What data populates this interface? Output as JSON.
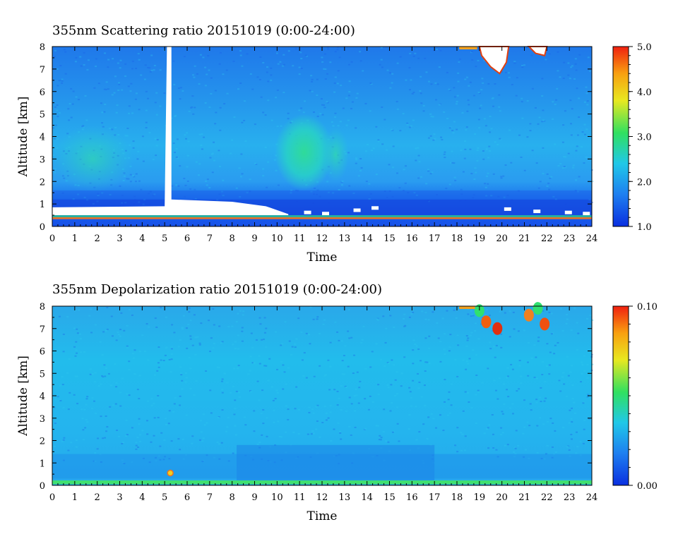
{
  "chart_data": [
    {
      "type": "heatmap",
      "title": "355nm Scattering ratio  20151019 (0:00-24:00)",
      "xlabel": "Time",
      "ylabel": "Altitude [km]",
      "xlim": [
        0,
        24
      ],
      "ylim": [
        0,
        8
      ],
      "x_ticks": [
        "0",
        "1",
        "2",
        "3",
        "4",
        "5",
        "6",
        "7",
        "8",
        "9",
        "10",
        "11",
        "12",
        "13",
        "14",
        "15",
        "16",
        "17",
        "18",
        "19",
        "20",
        "21",
        "22",
        "23",
        "24"
      ],
      "y_ticks": [
        "0",
        "1",
        "2",
        "3",
        "4",
        "5",
        "6",
        "7",
        "8"
      ],
      "colorbar": {
        "min": 1.0,
        "max": 5.0,
        "ticks": [
          "1.0",
          "2.0",
          "3.0",
          "4.0",
          "5.0"
        ],
        "ramp": [
          "#0a2fe0",
          "#1e80f0",
          "#20c8e8",
          "#30e060",
          "#e8e820",
          "#f8a010",
          "#f02010"
        ]
      },
      "features": [
        {
          "label": "boundary layer",
          "x": [
            0,
            24
          ],
          "y": [
            0.4,
            1.0
          ],
          "value": 1.3
        },
        {
          "label": "aerosol plume",
          "x": [
            9.6,
            13.0
          ],
          "y": [
            2.0,
            4.8
          ],
          "value": 2.4
        },
        {
          "label": "saturated column",
          "x": [
            5.0,
            5.3
          ],
          "y": [
            0.5,
            8.0
          ],
          "value": "white"
        },
        {
          "label": "cirrus cloud",
          "x": [
            18.8,
            22.2
          ],
          "y": [
            6.7,
            8.0
          ],
          "value": 5.0
        }
      ]
    },
    {
      "type": "heatmap",
      "title": "355nm Depolarization ratio  20151019 (0:00-24:00)",
      "xlabel": "Time",
      "ylabel": "Altitude [km]",
      "xlim": [
        0,
        24
      ],
      "ylim": [
        0,
        8
      ],
      "x_ticks": [
        "0",
        "1",
        "2",
        "3",
        "4",
        "5",
        "6",
        "7",
        "8",
        "9",
        "10",
        "11",
        "12",
        "13",
        "14",
        "15",
        "16",
        "17",
        "18",
        "19",
        "20",
        "21",
        "22",
        "23",
        "24"
      ],
      "y_ticks": [
        "0",
        "1",
        "2",
        "3",
        "4",
        "5",
        "6",
        "7",
        "8"
      ],
      "colorbar": {
        "min": 0.0,
        "max": 0.1,
        "ticks": [
          "0.00",
          "0.10"
        ],
        "ramp": [
          "#0a2fe0",
          "#1e80f0",
          "#20c8e8",
          "#30e060",
          "#e8e820",
          "#f8a010",
          "#f02010"
        ]
      },
      "features": [
        {
          "label": "background",
          "x": [
            0,
            24
          ],
          "y": [
            0,
            8
          ],
          "value": 0.02
        },
        {
          "label": "near-surface layer",
          "x": [
            0,
            24
          ],
          "y": [
            0,
            0.2
          ],
          "value": 0.04
        },
        {
          "label": "cirrus cloud",
          "x": [
            18.8,
            22.2
          ],
          "y": [
            6.7,
            8.0
          ],
          "value": 0.09
        }
      ]
    }
  ]
}
